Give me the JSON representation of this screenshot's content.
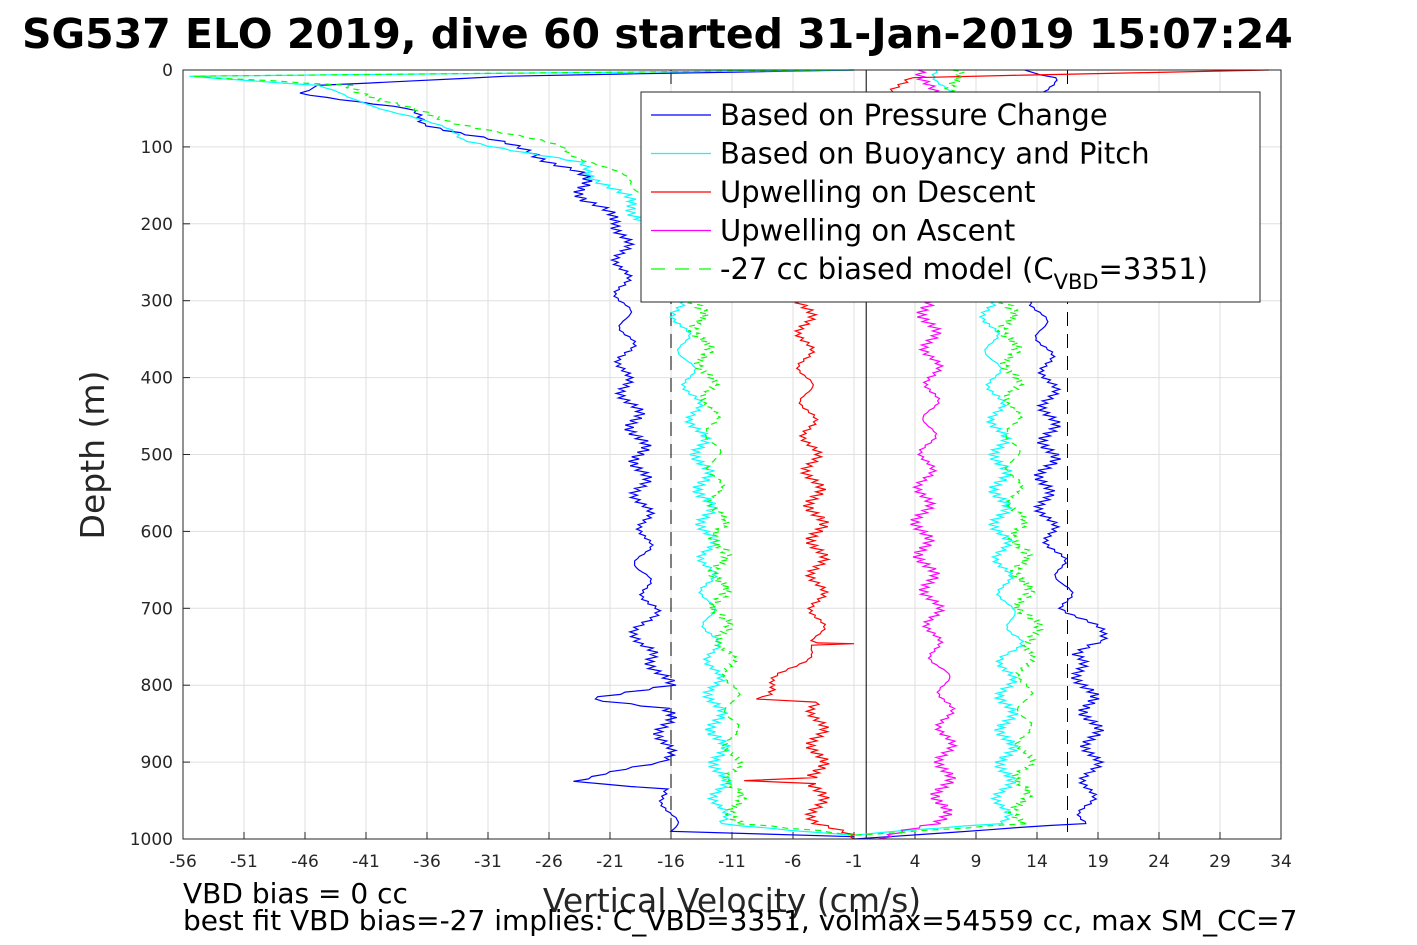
{
  "chart_data": {
    "type": "line",
    "title": "SG537 ELO 2019, dive 60 started 31-Jan-2019 15:07:24",
    "xlabel": "Vertical Velocity (cm/s)",
    "ylabel": "Depth (m)",
    "xlim": [
      -56,
      34
    ],
    "ylim": [
      0,
      1000
    ],
    "y_reversed": true,
    "grid": true,
    "xticks": [
      "-56",
      "-51",
      "-46",
      "-41",
      "-36",
      "-31",
      "-26",
      "-21",
      "-16",
      "-11",
      "-6",
      "-1",
      "4",
      "9",
      "14",
      "19",
      "24",
      "29",
      "34"
    ],
    "yticks": [
      "0",
      "100",
      "200",
      "300",
      "400",
      "500",
      "600",
      "700",
      "800",
      "900",
      "1000"
    ],
    "legend_location": "top-right",
    "series": [
      {
        "name": "Based on Pressure Change",
        "color": "#0000ff",
        "style": "solid",
        "descent": [
          [
            0,
            -1
          ],
          [
            8,
            -30
          ],
          [
            20,
            -45
          ],
          [
            30,
            -46
          ],
          [
            50,
            -38
          ],
          [
            70,
            -36
          ],
          [
            90,
            -31
          ],
          [
            110,
            -27
          ],
          [
            130,
            -24
          ],
          [
            150,
            -23
          ],
          [
            170,
            -23
          ],
          [
            200,
            -20
          ],
          [
            250,
            -20
          ],
          [
            300,
            -20
          ],
          [
            350,
            -19.5
          ],
          [
            400,
            -20
          ],
          [
            450,
            -19
          ],
          [
            500,
            -18.5
          ],
          [
            550,
            -18.5
          ],
          [
            600,
            -18
          ],
          [
            650,
            -18.5
          ],
          [
            700,
            -17.5
          ],
          [
            746,
            -19
          ],
          [
            760,
            -17.5
          ],
          [
            800,
            -16.5
          ],
          [
            818,
            -22
          ],
          [
            830,
            -16.5
          ],
          [
            900,
            -16.5
          ],
          [
            925,
            -24
          ],
          [
            935,
            -17
          ],
          [
            960,
            -16
          ],
          [
            990,
            -16
          ],
          [
            997,
            -1
          ]
        ],
        "ascent": [
          [
            0,
            13
          ],
          [
            10,
            15
          ],
          [
            50,
            15
          ],
          [
            100,
            14.5
          ],
          [
            200,
            14.5
          ],
          [
            300,
            14
          ],
          [
            400,
            15
          ],
          [
            500,
            15
          ],
          [
            550,
            14.5
          ],
          [
            600,
            15
          ],
          [
            650,
            16
          ],
          [
            700,
            16.5
          ],
          [
            742,
            20
          ],
          [
            760,
            17
          ],
          [
            800,
            18
          ],
          [
            850,
            18.5
          ],
          [
            900,
            18.5
          ],
          [
            960,
            18
          ],
          [
            980,
            18
          ],
          [
            985,
            12
          ],
          [
            1000,
            -1
          ]
        ]
      },
      {
        "name": "Based on Buoyancy and Pitch",
        "color": "#00ffff",
        "style": "solid",
        "descent": [
          [
            0,
            -1
          ],
          [
            8,
            -55
          ],
          [
            20,
            -45
          ],
          [
            35,
            -43
          ],
          [
            60,
            -37
          ],
          [
            90,
            -33
          ],
          [
            120,
            -24
          ],
          [
            150,
            -21
          ],
          [
            180,
            -19
          ],
          [
            200,
            -18
          ],
          [
            300,
            -15.5
          ],
          [
            400,
            -14.5
          ],
          [
            500,
            -13.5
          ],
          [
            600,
            -13
          ],
          [
            650,
            -13
          ],
          [
            700,
            -13
          ],
          [
            760,
            -12.5
          ],
          [
            800,
            -12.5
          ],
          [
            900,
            -12
          ],
          [
            980,
            -12
          ],
          [
            995,
            -1
          ]
        ],
        "ascent": [
          [
            0,
            6
          ],
          [
            300,
            10
          ],
          [
            400,
            10.5
          ],
          [
            500,
            11
          ],
          [
            600,
            11
          ],
          [
            700,
            11.5
          ],
          [
            740,
            12.5
          ],
          [
            760,
            11.5
          ],
          [
            900,
            11.5
          ],
          [
            980,
            11
          ],
          [
            995,
            -1
          ]
        ]
      },
      {
        "name": "Upwelling on Descent",
        "color": "#ff0000",
        "style": "solid",
        "descent": [
          [
            0,
            33
          ],
          [
            10,
            3
          ],
          [
            300,
            -5
          ],
          [
            400,
            -5
          ],
          [
            500,
            -4.5
          ],
          [
            600,
            -4
          ],
          [
            700,
            -4
          ],
          [
            745,
            -4
          ],
          [
            746,
            -1
          ],
          [
            748,
            -4
          ],
          [
            818,
            -9
          ],
          [
            822,
            -4
          ],
          [
            920,
            -4
          ],
          [
            924,
            -10
          ],
          [
            928,
            -4
          ],
          [
            980,
            -4
          ],
          [
            1000,
            -1
          ]
        ]
      },
      {
        "name": "Upwelling on Ascent",
        "color": "#ff00ff",
        "style": "solid",
        "ascent": [
          [
            0,
            5
          ],
          [
            300,
            5
          ],
          [
            400,
            5.5
          ],
          [
            500,
            5
          ],
          [
            600,
            4.5
          ],
          [
            700,
            5.5
          ],
          [
            750,
            5.5
          ],
          [
            800,
            6.5
          ],
          [
            900,
            6.5
          ],
          [
            980,
            6
          ],
          [
            1000,
            1
          ]
        ]
      },
      {
        "name": "-27 cc biased model (C_VBD=3351)",
        "legend_label": "-27 cc biased model (C",
        "legend_sub": "VBD",
        "legend_tail": "=3351)",
        "color": "#00ff00",
        "style": "dashed",
        "descent": [
          [
            0,
            -1
          ],
          [
            8,
            -56
          ],
          [
            20,
            -42
          ],
          [
            40,
            -40
          ],
          [
            70,
            -33
          ],
          [
            100,
            -25
          ],
          [
            130,
            -21
          ],
          [
            160,
            -18
          ],
          [
            200,
            -17
          ],
          [
            300,
            -14
          ],
          [
            400,
            -13
          ],
          [
            500,
            -12.5
          ],
          [
            600,
            -12
          ],
          [
            700,
            -12
          ],
          [
            760,
            -11.5
          ],
          [
            800,
            -11
          ],
          [
            900,
            -11
          ],
          [
            980,
            -10.5
          ],
          [
            995,
            -1
          ]
        ],
        "ascent": [
          [
            0,
            7
          ],
          [
            300,
            11.5
          ],
          [
            400,
            12
          ],
          [
            500,
            12
          ],
          [
            600,
            12.5
          ],
          [
            700,
            13
          ],
          [
            740,
            14
          ],
          [
            760,
            13
          ],
          [
            900,
            13
          ],
          [
            980,
            12.5
          ],
          [
            995,
            -1
          ]
        ]
      }
    ],
    "reference_lines": {
      "vertical_solid_x": 0,
      "vertical_dashed_x": [
        -16,
        16.5
      ]
    }
  },
  "footer": {
    "line1": "VBD bias = 0 cc",
    "line2": "best fit VBD bias=-27 implies: C_VBD=3351, volmax=54559 cc, max SM_CC=7"
  }
}
